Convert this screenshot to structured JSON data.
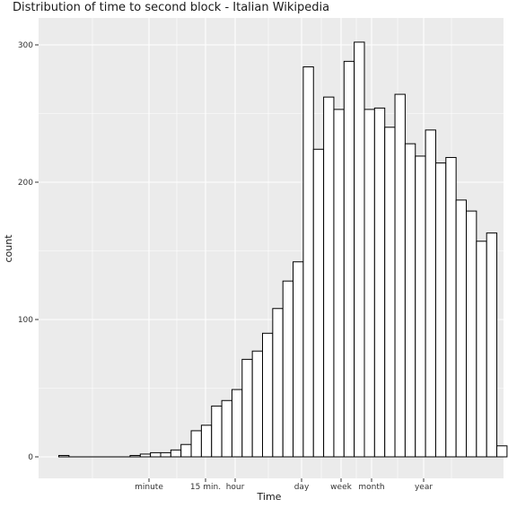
{
  "chart_data": {
    "type": "bar",
    "title": "Distribution of time to second block - Italian Wikipedia",
    "xlabel": "Time",
    "ylabel": "count",
    "ylim": [
      0,
      325
    ],
    "y_ticks": [
      0,
      100,
      200,
      300
    ],
    "x_tick_labels": [
      "minute",
      "15 min.",
      "hour",
      "day",
      "week",
      "month",
      "year"
    ],
    "legend": "none",
    "grid": true,
    "values": [
      1,
      0,
      0,
      0,
      0,
      0,
      0,
      1,
      2,
      3,
      3,
      5,
      9,
      19,
      23,
      37,
      41,
      49,
      71,
      77,
      90,
      108,
      128,
      142,
      284,
      224,
      262,
      253,
      288,
      302,
      253,
      254,
      240,
      264,
      228,
      219,
      238,
      214,
      218,
      187,
      179,
      157,
      163,
      8
    ]
  }
}
